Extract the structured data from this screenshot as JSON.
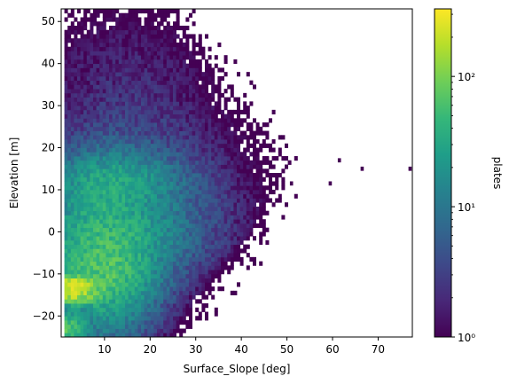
{
  "chart_data": {
    "type": "heatmap",
    "xlabel": "Surface_Slope [deg]",
    "ylabel": "Elevation [m]",
    "xlim": [
      0.5,
      77.5
    ],
    "ylim": [
      -25,
      53
    ],
    "xticks": [
      10,
      20,
      30,
      40,
      50,
      60,
      70
    ],
    "yticks": [
      -20,
      -10,
      0,
      10,
      20,
      30,
      40,
      50
    ],
    "x_tick_labels": [
      "10",
      "20",
      "30",
      "40",
      "50",
      "60",
      "70"
    ],
    "y_tick_labels": [
      "−20",
      "−10",
      "0",
      "10",
      "20",
      "30",
      "40",
      "50"
    ],
    "colorbar": {
      "label": "plates",
      "scale": "log",
      "range": [
        1,
        330
      ],
      "ticks": [
        1,
        10,
        100
      ],
      "tick_labels": [
        "10⁰",
        "10¹",
        "10²"
      ],
      "colormap": "viridis",
      "colors": [
        "#440154",
        "#482878",
        "#3e4989",
        "#31688e",
        "#26828e",
        "#1f9e89",
        "#35b779",
        "#6ece58",
        "#b5de2b",
        "#fde725"
      ]
    },
    "density_features": [
      {
        "description": "peak",
        "x": 3,
        "y": -12.5,
        "count": 330
      },
      {
        "description": "peak",
        "x": 3,
        "y": -15,
        "count": 250
      },
      {
        "description": "peak",
        "x": 2,
        "y": -23,
        "count": 150
      },
      {
        "description": "core",
        "x": 10,
        "y": -5,
        "count": 60
      },
      {
        "description": "band",
        "x": 12,
        "y": 12,
        "count": 30
      },
      {
        "description": "outlier",
        "x": 77,
        "y": 15,
        "count": 1
      }
    ]
  }
}
